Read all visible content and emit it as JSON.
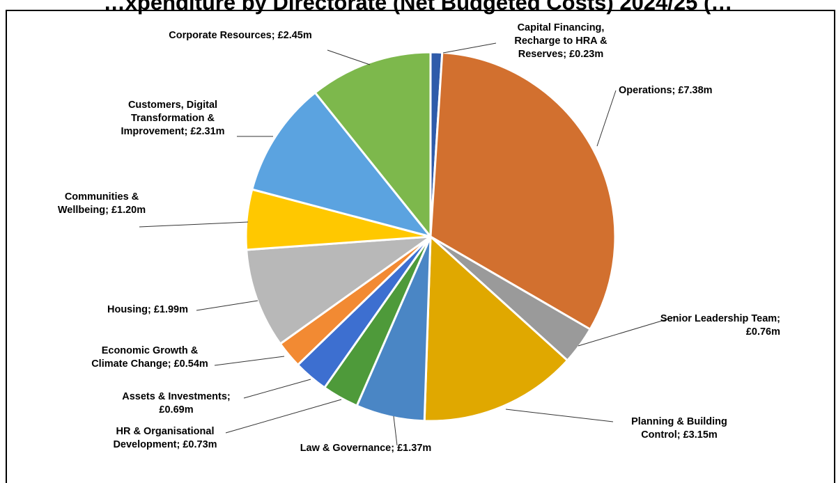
{
  "chart_data": {
    "type": "pie",
    "title": "…xpenditure by Directorate (Net Budgeted Costs) 2024/25 (…",
    "unit": "£m",
    "slices": [
      {
        "label": "Capital Financing, Recharge to HRA & Reserves",
        "value": 0.23,
        "display": "£0.23m",
        "color": "#2F5BAA"
      },
      {
        "label": "Operations",
        "value": 7.38,
        "display": "£7.38m",
        "color": "#D2702F"
      },
      {
        "label": "Senior Leadership Team",
        "value": 0.76,
        "display": "£0.76m",
        "color": "#9A9A9A"
      },
      {
        "label": "Planning & Building Control",
        "value": 3.15,
        "display": "£3.15m",
        "color": "#E0A800"
      },
      {
        "label": "Law & Governance",
        "value": 1.37,
        "display": "£1.37m",
        "color": "#4A86C5"
      },
      {
        "label": "HR & Organisational Development",
        "value": 0.73,
        "display": "£0.73m",
        "color": "#4E9A3A"
      },
      {
        "label": "Assets & Investments",
        "value": 0.69,
        "display": "£0.69m",
        "color": "#3D6FD0"
      },
      {
        "label": "Economic Growth & Climate Change",
        "value": 0.54,
        "display": "£0.54m",
        "color": "#F28A33"
      },
      {
        "label": "Housing",
        "value": 1.99,
        "display": "£1.99m",
        "color": "#B8B8B8"
      },
      {
        "label": "Communities & Wellbeing",
        "value": 1.2,
        "display": "£1.20m",
        "color": "#FFC800"
      },
      {
        "label": "Customers, Digital Transformation & Improvement",
        "value": 2.31,
        "display": "£2.31m",
        "color": "#5BA3E0"
      },
      {
        "label": "Corporate Resources",
        "value": 2.45,
        "display": "£2.45m",
        "color": "#7DB84C"
      }
    ],
    "labels": [
      {
        "lines": [
          "Capital Financing,",
          "Recharge to HRA &",
          "Reserves; £0.23m"
        ]
      },
      {
        "lines": [
          "Operations; £7.38m"
        ]
      },
      {
        "lines": [
          "Senior Leadership Team;",
          "£0.76m"
        ]
      },
      {
        "lines": [
          "Planning & Building",
          "Control; £3.15m"
        ]
      },
      {
        "lines": [
          "Law & Governance; £1.37m"
        ]
      },
      {
        "lines": [
          "HR & Organisational",
          "Development; £0.73m"
        ]
      },
      {
        "lines": [
          "Assets & Investments;",
          "£0.69m"
        ]
      },
      {
        "lines": [
          "Economic Growth &",
          "Climate Change; £0.54m"
        ]
      },
      {
        "lines": [
          "Housing; £1.99m"
        ]
      },
      {
        "lines": [
          "Communities &",
          "Wellbeing; £1.20m"
        ]
      },
      {
        "lines": [
          "Customers, Digital",
          "Transformation &",
          "Improvement; £2.31m"
        ]
      },
      {
        "lines": [
          "Corporate Resources; £2.45m"
        ]
      }
    ],
    "legend": "none (category labels with leader lines)"
  }
}
